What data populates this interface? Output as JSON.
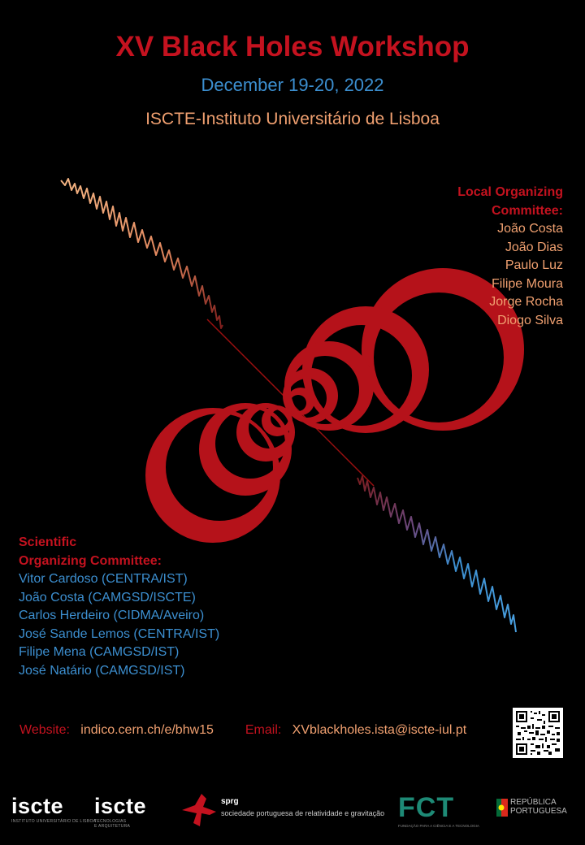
{
  "title": "XV Black Holes Workshop",
  "dates": "December 19-20, 2022",
  "venue": "ISCTE-Instituto Universitário de Lisboa",
  "local_committee": {
    "heading_line1": "Local Organizing",
    "heading_line2": "Committee:",
    "members": [
      "João Costa",
      "João Dias",
      "Paulo Luz",
      "Filipe Moura",
      "Jorge Rocha",
      "Diogo Silva"
    ]
  },
  "scientific_committee": {
    "heading_line1": "Scientific",
    "heading_line2": "Organizing Committee:",
    "members": [
      "Vitor Cardoso (CENTRA/IST)",
      "João Costa (CAMGSD/ISCTE)",
      "Carlos Herdeiro (CIDMA/Aveiro)",
      "José Sande Lemos (CENTRA/IST)",
      "Filipe Mena (CAMGSD/IST)",
      "José Natário (CAMGSD/IST)"
    ]
  },
  "contact": {
    "website_label": "Website:",
    "website": "indico.cern.ch/e/bhw15",
    "email_label": "Email:",
    "email": "XVblackholes.ista@iscte-iul.pt"
  },
  "logos": {
    "iscte1": "iscte",
    "iscte1_sub": "INSTITUTO UNIVERSITÁRIO DE LISBOA",
    "iscte2": "iscte",
    "iscte2_sub1": "TECNOLOGIAS",
    "iscte2_sub2": "E ARQUITETURA",
    "sprg": "sprg",
    "sprg_sub": "sociedade portuguesa de relatividade e gravitação",
    "fct": "FCT",
    "fct_sub": "FUNDAÇÃO PARA A CIÊNCIA E A TECNOLOGIA",
    "rep1": "REPÚBLICA",
    "rep2": "PORTUGUESA"
  },
  "colors": {
    "red": "#c4121f",
    "blue": "#3c8fd0",
    "orange": "#f0a070",
    "fct_green": "#1e8a76"
  }
}
